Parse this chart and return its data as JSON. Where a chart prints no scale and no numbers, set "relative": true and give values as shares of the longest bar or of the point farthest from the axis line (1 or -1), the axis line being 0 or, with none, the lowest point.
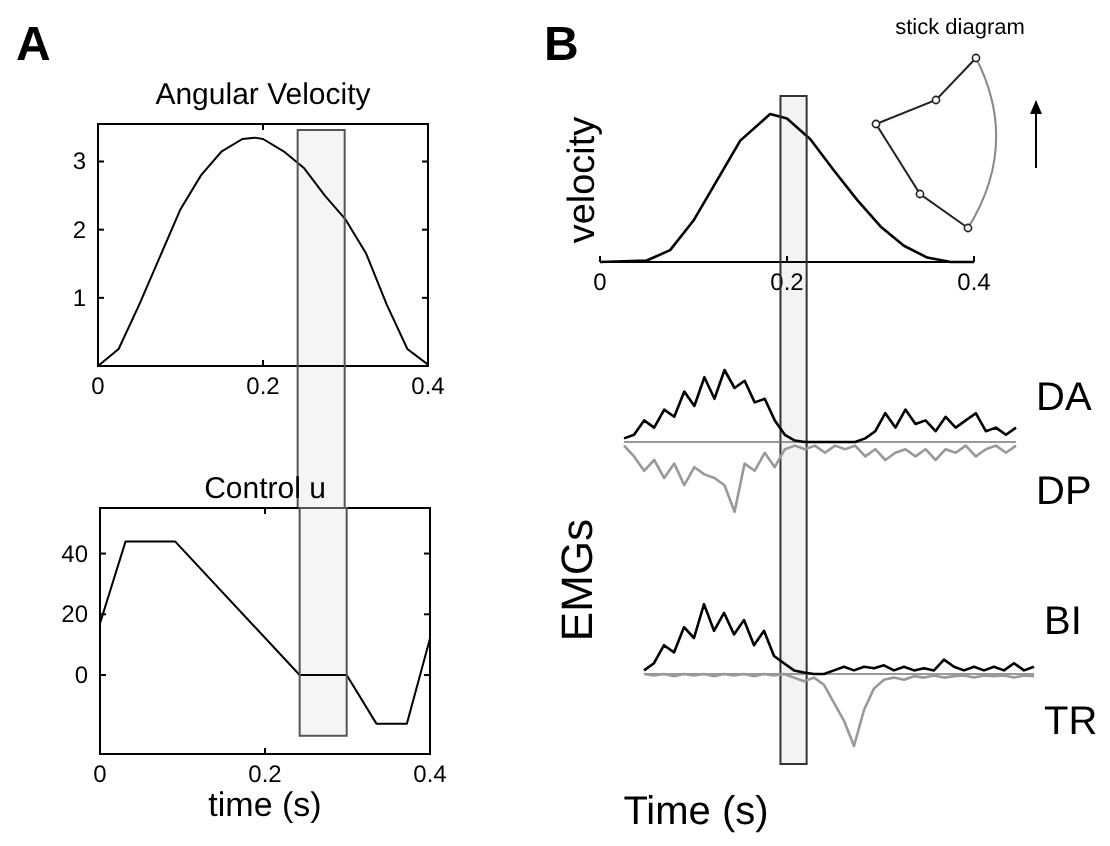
{
  "chart_data": [
    {
      "type": "line",
      "title": "Angular Velocity",
      "annotations": [
        "A"
      ],
      "xlim": [
        0,
        0.4
      ],
      "xticks": [
        0,
        0.2,
        0.4
      ],
      "ylim": [
        0,
        3.55
      ],
      "yticks": [
        1,
        2,
        3
      ],
      "x": [
        0,
        0.025,
        0.05,
        0.075,
        0.1,
        0.125,
        0.15,
        0.175,
        0.19,
        0.2,
        0.225,
        0.25,
        0.275,
        0.3,
        0.325,
        0.35,
        0.375,
        0.4
      ],
      "series": [
        {
          "color": "#000000",
          "values": [
            0,
            0.25,
            0.9,
            1.6,
            2.3,
            2.8,
            3.15,
            3.33,
            3.35,
            3.33,
            3.15,
            2.9,
            2.5,
            2.15,
            1.65,
            0.9,
            0.25,
            0.02
          ]
        }
      ],
      "bands": [
        {
          "axis": "x",
          "from": 0.242,
          "to": 0.299,
          "color": "#555555"
        }
      ]
    },
    {
      "type": "line",
      "title": "Control u",
      "xlabel": "time (s)",
      "xlim": [
        0,
        0.4
      ],
      "xticks": [
        0,
        0.2,
        0.4
      ],
      "ylim": [
        -26,
        55
      ],
      "yticks": [
        0,
        20,
        40
      ],
      "x": [
        0,
        0.031,
        0.091,
        0.242,
        0.299,
        0.335,
        0.372,
        0.4
      ],
      "series": [
        {
          "color": "#000000",
          "values": [
            17,
            44,
            44,
            0,
            0,
            -16,
            -16,
            12
          ]
        }
      ],
      "bands": [
        {
          "axis": "x",
          "from": 0.242,
          "to": 0.299,
          "color": "#555555"
        }
      ]
    },
    {
      "type": "line",
      "ylabel": "velocity",
      "annotations": [
        "B",
        "stick diagram"
      ],
      "relative": true,
      "tick_labels": "x",
      "xlim": [
        0,
        0.4
      ],
      "xticks": [
        0,
        0.2,
        0.4
      ],
      "x": [
        0,
        0.05,
        0.075,
        0.1,
        0.125,
        0.15,
        0.182,
        0.2,
        0.225,
        0.25,
        0.275,
        0.3,
        0.325,
        0.35,
        0.375,
        0.4
      ],
      "series": [
        {
          "color": "#000000",
          "values": [
            0,
            0.01,
            0.08,
            0.28,
            0.55,
            0.82,
            1,
            0.97,
            0.83,
            0.62,
            0.42,
            0.24,
            0.11,
            0.03,
            0,
            0
          ]
        }
      ],
      "bands": [
        {
          "axis": "x",
          "from": 0.193,
          "to": 0.221,
          "color": "#333333"
        }
      ]
    },
    {
      "type": "line",
      "ylabel": "EMGs",
      "relative": true,
      "tick_labels": false,
      "categories": [
        null,
        null,
        null,
        null,
        null,
        null,
        null,
        null,
        null,
        null,
        null,
        null,
        null,
        null,
        null,
        null,
        null,
        null,
        null,
        null,
        null,
        null,
        null,
        null,
        null,
        null,
        null,
        null,
        null,
        null,
        null,
        null,
        null,
        null,
        null,
        null,
        null,
        null,
        null,
        null
      ],
      "series": [
        {
          "name": "DA",
          "color": "#000000",
          "values": [
            0.05,
            0.1,
            0.3,
            0.2,
            0.45,
            0.35,
            0.7,
            0.5,
            0.9,
            0.6,
            1,
            0.75,
            0.85,
            0.55,
            0.6,
            0.3,
            0.1,
            0.02,
            0,
            0,
            0,
            0,
            0,
            0,
            0.05,
            0.15,
            0.4,
            0.2,
            0.45,
            0.25,
            0.3,
            0.15,
            0.35,
            0.2,
            0.3,
            0.4,
            0.15,
            0.2,
            0.1,
            0.2
          ]
        },
        {
          "name": "DP",
          "color": "#999999",
          "values": [
            -0.05,
            -0.2,
            -0.4,
            -0.25,
            -0.5,
            -0.3,
            -0.6,
            -0.35,
            -0.45,
            -0.5,
            -0.6,
            -0.97,
            -0.3,
            -0.4,
            -0.15,
            -0.35,
            -0.1,
            -0.05,
            -0.1,
            -0.05,
            -0.15,
            -0.05,
            -0.1,
            -0.05,
            -0.2,
            -0.1,
            -0.25,
            -0.15,
            -0.1,
            -0.2,
            -0.1,
            -0.25,
            -0.1,
            -0.15,
            -0.05,
            -0.2,
            -0.1,
            -0.05,
            -0.15,
            -0.05
          ]
        }
      ]
    },
    {
      "type": "line",
      "xlabel": "Time (s)",
      "relative": true,
      "tick_labels": false,
      "categories": [
        null,
        null,
        null,
        null,
        null,
        null,
        null,
        null,
        null,
        null,
        null,
        null,
        null,
        null,
        null,
        null,
        null,
        null,
        null,
        null,
        null,
        null,
        null,
        null,
        null,
        null,
        null,
        null,
        null,
        null,
        null,
        null,
        null,
        null,
        null,
        null,
        null,
        null,
        null,
        null
      ],
      "series": [
        {
          "name": "BI",
          "color": "#000000",
          "values": [
            0.05,
            0.15,
            0.4,
            0.3,
            0.65,
            0.5,
            0.97,
            0.6,
            0.85,
            0.55,
            0.75,
            0.4,
            0.6,
            0.25,
            0.15,
            0.05,
            0.02,
            0,
            0,
            0.05,
            0.1,
            0.05,
            0.1,
            0.08,
            0.12,
            0.05,
            0.1,
            0.05,
            0.08,
            0.05,
            0.2,
            0.1,
            0.05,
            0.1,
            0.05,
            0.1,
            0.05,
            0.15,
            0.05,
            0.1
          ]
        },
        {
          "name": "TR",
          "color": "#999999",
          "values": [
            0,
            -0.02,
            0,
            -0.03,
            0,
            -0.02,
            0,
            -0.03,
            0,
            -0.02,
            0,
            -0.03,
            0,
            -0.02,
            0,
            -0.05,
            -0.1,
            -0.05,
            -0.15,
            -0.4,
            -0.65,
            -1,
            -0.5,
            -0.2,
            -0.08,
            -0.05,
            -0.08,
            -0.03,
            -0.05,
            -0.02,
            -0.05,
            -0.03,
            -0.02,
            -0.05,
            -0.02,
            -0.03,
            -0.02,
            -0.05,
            -0.02,
            -0.03
          ]
        }
      ]
    }
  ]
}
